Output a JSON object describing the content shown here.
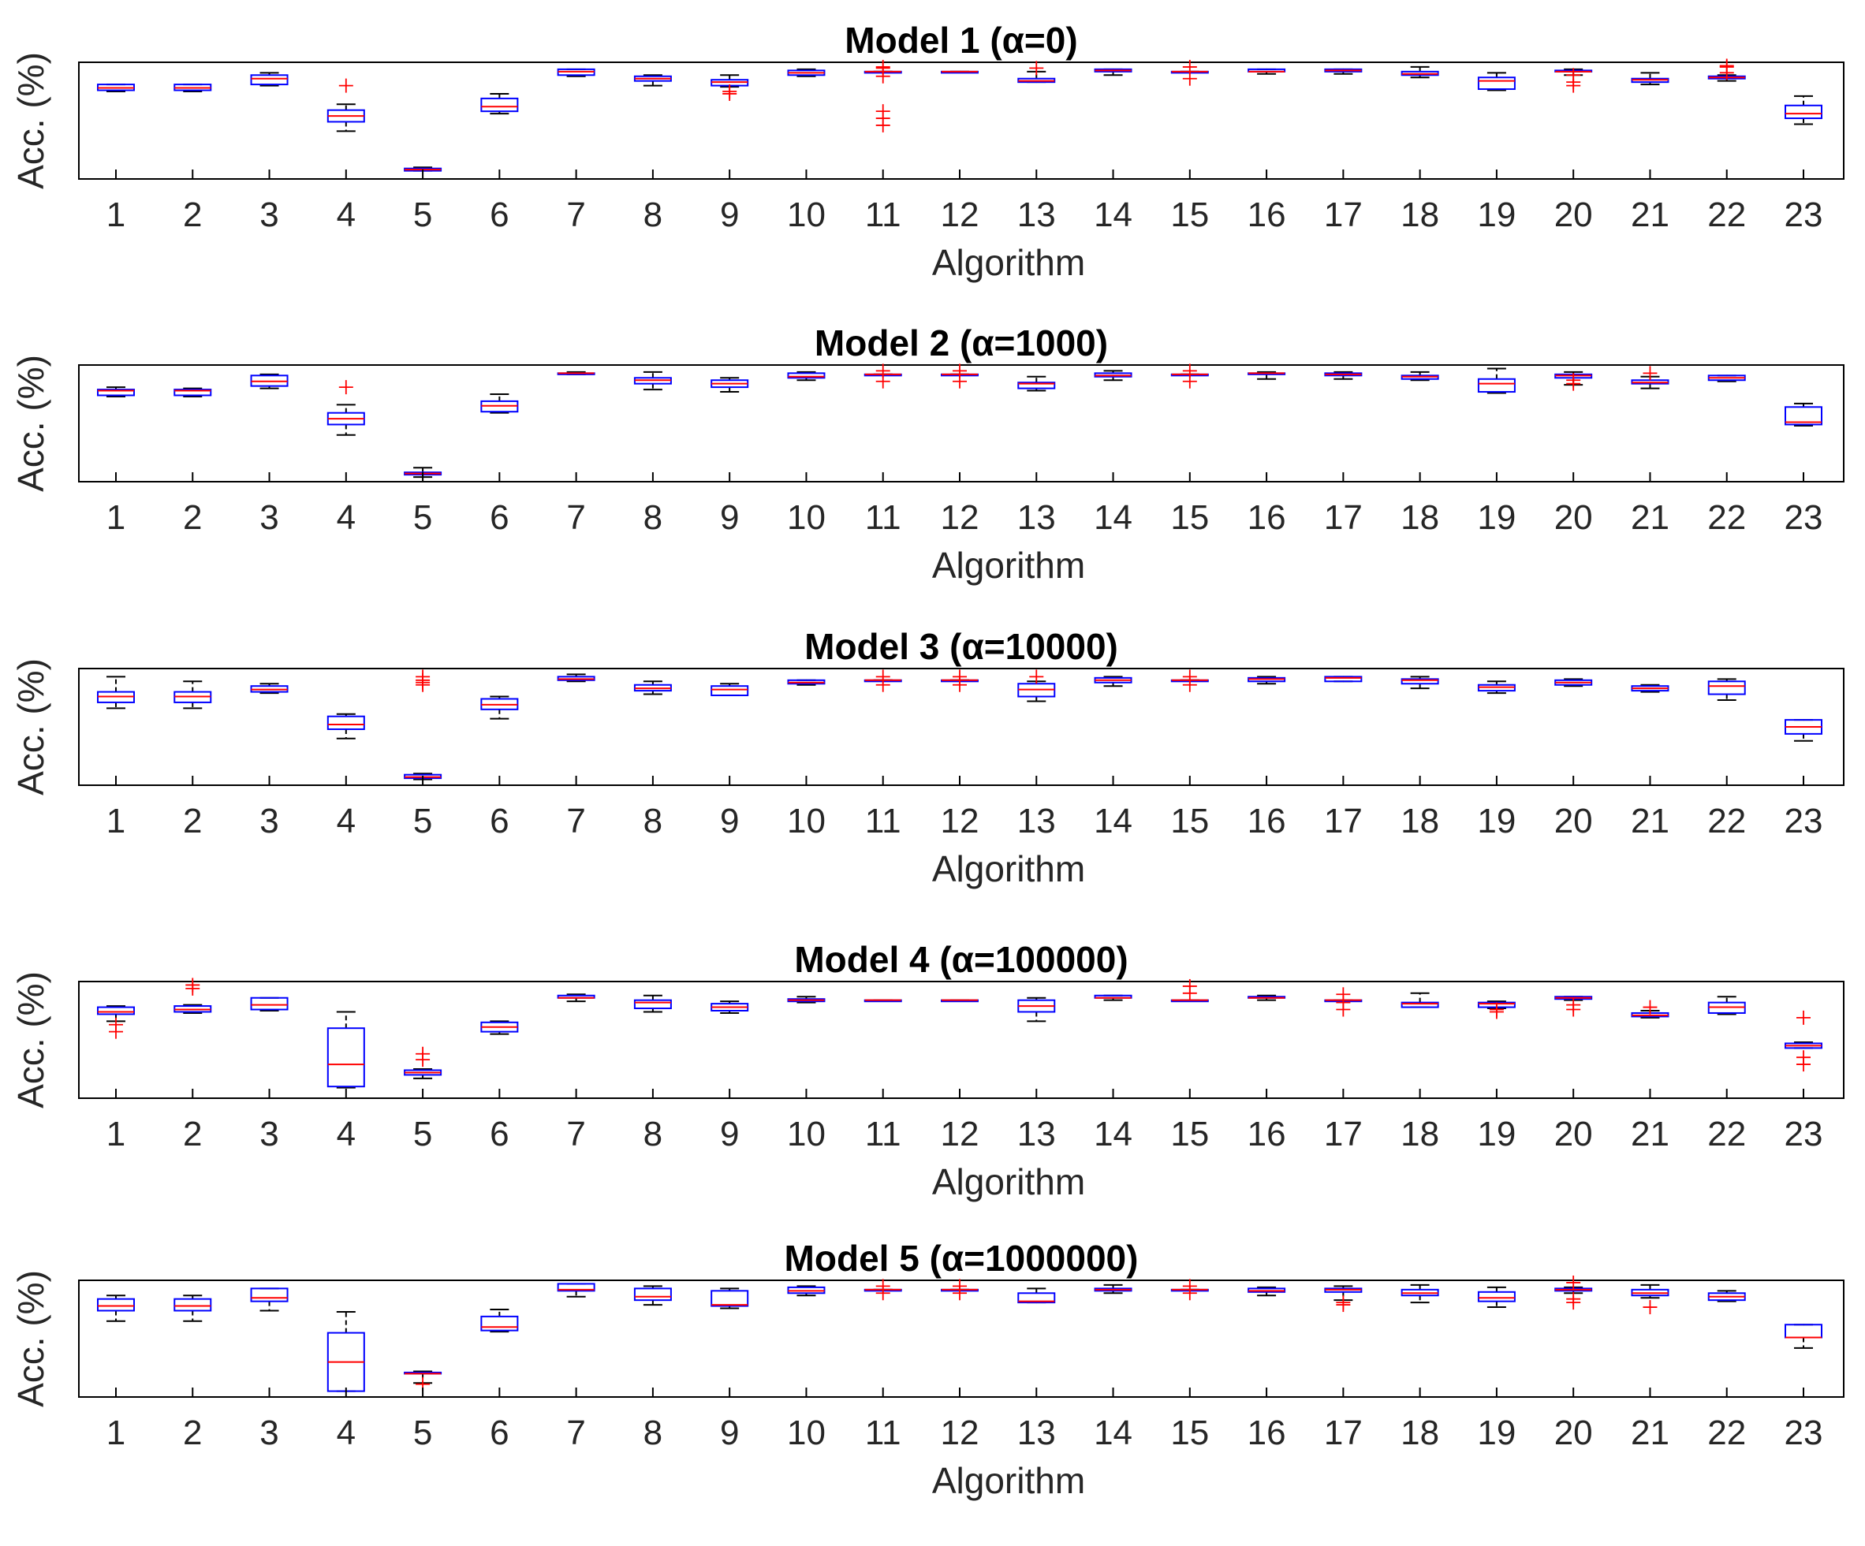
{
  "colors": {
    "box": "#0000ff",
    "median": "#ff0000",
    "whisker": "#000000",
    "outlier": "#ff0000",
    "axes": "#000000"
  },
  "chart_data": [
    {
      "type": "box",
      "title": "Model 1 (α=0)",
      "xlabel": "Algorithm",
      "ylabel": "Acc. (%)",
      "categories": [
        "1",
        "2",
        "3",
        "4",
        "5",
        "6",
        "7",
        "8",
        "9",
        "10",
        "11",
        "12",
        "13",
        "14",
        "15",
        "16",
        "17",
        "18",
        "19",
        "20",
        "21",
        "22",
        "23"
      ],
      "ylim": [
        0,
        100
      ],
      "yticks_shown": false,
      "boxes": [
        {
          "min": 75,
          "q1": 76,
          "median": 78,
          "q3": 81,
          "max": 81
        },
        {
          "min": 75,
          "q1": 76,
          "median": 78,
          "q3": 81,
          "max": 81
        },
        {
          "min": 80,
          "q1": 81,
          "median": 86,
          "q3": 89,
          "max": 91
        },
        {
          "min": 41,
          "q1": 49,
          "median": 54,
          "q3": 59,
          "max": 64,
          "outliers": [
            80
          ]
        },
        {
          "min": 7,
          "q1": 7,
          "median": 8,
          "q3": 9,
          "max": 10
        },
        {
          "min": 56,
          "q1": 58,
          "median": 62,
          "q3": 69,
          "max": 73
        },
        {
          "min": 88,
          "q1": 89,
          "median": 92,
          "q3": 94,
          "max": 94
        },
        {
          "min": 80,
          "q1": 84,
          "median": 86,
          "q3": 88,
          "max": 89
        },
        {
          "min": 79,
          "q1": 80,
          "median": 83,
          "q3": 85,
          "max": 89,
          "outliers": [
            73,
            75
          ]
        },
        {
          "min": 88,
          "q1": 89,
          "median": 91,
          "q3": 93,
          "max": 94
        },
        {
          "min": 92,
          "q1": 92,
          "median": 92,
          "q3": 92,
          "max": 92,
          "outliers": [
            46,
            52,
            58,
            88,
            95,
            96
          ]
        },
        {
          "min": 92,
          "q1": 92,
          "median": 92,
          "q3": 92,
          "max": 92
        },
        {
          "min": 83,
          "q1": 83,
          "median": 84,
          "q3": 86,
          "max": 92,
          "outliers": [
            95
          ]
        },
        {
          "min": 89,
          "q1": 92,
          "median": 93,
          "q3": 94,
          "max": 94
        },
        {
          "min": 92,
          "q1": 92,
          "median": 92,
          "q3": 92,
          "max": 92,
          "outliers": [
            86,
            96
          ]
        },
        {
          "min": 90,
          "q1": 92,
          "median": 92,
          "q3": 94,
          "max": 94
        },
        {
          "min": 90,
          "q1": 92,
          "median": 93,
          "q3": 94,
          "max": 94
        },
        {
          "min": 87,
          "q1": 89,
          "median": 90,
          "q3": 92,
          "max": 96
        },
        {
          "min": 76,
          "q1": 77,
          "median": 84,
          "q3": 87,
          "max": 91
        },
        {
          "min": 89,
          "q1": 92,
          "median": 92,
          "q3": 93,
          "max": 94,
          "outliers": [
            80,
            83,
            89
          ]
        },
        {
          "min": 81,
          "q1": 83,
          "median": 85,
          "q3": 86,
          "max": 91
        },
        {
          "min": 84,
          "q1": 86,
          "median": 87,
          "q3": 88,
          "max": 89,
          "outliers": [
            91,
            96,
            97
          ]
        },
        {
          "min": 47,
          "q1": 52,
          "median": 56,
          "q3": 63,
          "max": 71
        }
      ]
    },
    {
      "type": "box",
      "title": "Model 2 (α=1000)",
      "xlabel": "Algorithm",
      "ylabel": "Acc. (%)",
      "categories": [
        "1",
        "2",
        "3",
        "4",
        "5",
        "6",
        "7",
        "8",
        "9",
        "10",
        "11",
        "12",
        "13",
        "14",
        "15",
        "16",
        "17",
        "18",
        "19",
        "20",
        "21",
        "22",
        "23"
      ],
      "ylim": [
        0,
        100
      ],
      "yticks_shown": false,
      "boxes": [
        {
          "min": 73,
          "q1": 74,
          "median": 78,
          "q3": 79,
          "max": 81
        },
        {
          "min": 73,
          "q1": 74,
          "median": 78,
          "q3": 79,
          "max": 80
        },
        {
          "min": 80,
          "q1": 82,
          "median": 86,
          "q3": 91,
          "max": 92
        },
        {
          "min": 40,
          "q1": 49,
          "median": 54,
          "q3": 59,
          "max": 66,
          "outliers": [
            81
          ]
        },
        {
          "min": 4,
          "q1": 6,
          "median": 7,
          "q3": 8,
          "max": 12
        },
        {
          "min": 59,
          "q1": 60,
          "median": 65,
          "q3": 69,
          "max": 75
        },
        {
          "min": 92,
          "q1": 92,
          "median": 93,
          "q3": 93,
          "max": 94
        },
        {
          "min": 79,
          "q1": 84,
          "median": 87,
          "q3": 89,
          "max": 94
        },
        {
          "min": 77,
          "q1": 81,
          "median": 84,
          "q3": 87,
          "max": 89
        },
        {
          "min": 87,
          "q1": 89,
          "median": 90,
          "q3": 93,
          "max": 94
        },
        {
          "min": 92,
          "q1": 92,
          "median": 92,
          "q3": 92,
          "max": 92,
          "outliers": [
            86,
            95
          ]
        },
        {
          "min": 92,
          "q1": 92,
          "median": 92,
          "q3": 92,
          "max": 92,
          "outliers": [
            86,
            95
          ]
        },
        {
          "min": 78,
          "q1": 80,
          "median": 84,
          "q3": 85,
          "max": 90
        },
        {
          "min": 87,
          "q1": 90,
          "median": 91,
          "q3": 93,
          "max": 95
        },
        {
          "min": 92,
          "q1": 92,
          "median": 92,
          "q3": 92,
          "max": 92,
          "outliers": [
            86,
            95
          ]
        },
        {
          "min": 88,
          "q1": 92,
          "median": 93,
          "q3": 93,
          "max": 94
        },
        {
          "min": 88,
          "q1": 91,
          "median": 92,
          "q3": 93,
          "max": 94
        },
        {
          "min": 87,
          "q1": 88,
          "median": 90,
          "q3": 91,
          "max": 94
        },
        {
          "min": 76,
          "q1": 77,
          "median": 84,
          "q3": 88,
          "max": 97
        },
        {
          "min": 83,
          "q1": 89,
          "median": 91,
          "q3": 92,
          "max": 94,
          "outliers": [
            84,
            87
          ]
        },
        {
          "min": 80,
          "q1": 84,
          "median": 85,
          "q3": 87,
          "max": 90,
          "outliers": [
            93
          ]
        },
        {
          "min": 86,
          "q1": 87,
          "median": 89,
          "q3": 91,
          "max": 91
        },
        {
          "min": 48,
          "q1": 49,
          "median": 51,
          "q3": 64,
          "max": 67
        }
      ]
    },
    {
      "type": "box",
      "title": "Model 3 (α=10000)",
      "xlabel": "Algorithm",
      "ylabel": "Acc. (%)",
      "categories": [
        "1",
        "2",
        "3",
        "4",
        "5",
        "6",
        "7",
        "8",
        "9",
        "10",
        "11",
        "12",
        "13",
        "14",
        "15",
        "16",
        "17",
        "18",
        "19",
        "20",
        "21",
        "22",
        "23"
      ],
      "ylim": [
        0,
        100
      ],
      "yticks_shown": false,
      "boxes": [
        {
          "min": 66,
          "q1": 71,
          "median": 76,
          "q3": 80,
          "max": 93
        },
        {
          "min": 66,
          "q1": 71,
          "median": 76,
          "q3": 80,
          "max": 89
        },
        {
          "min": 79,
          "q1": 80,
          "median": 82,
          "q3": 85,
          "max": 87
        },
        {
          "min": 40,
          "q1": 48,
          "median": 52,
          "q3": 59,
          "max": 61
        },
        {
          "min": 5,
          "q1": 6,
          "median": 7,
          "q3": 9,
          "max": 10,
          "outliers": [
            86,
            88,
            90,
            93
          ]
        },
        {
          "min": 57,
          "q1": 65,
          "median": 69,
          "q3": 74,
          "max": 76
        },
        {
          "min": 89,
          "q1": 90,
          "median": 91,
          "q3": 93,
          "max": 95
        },
        {
          "min": 78,
          "q1": 81,
          "median": 83,
          "q3": 86,
          "max": 89
        },
        {
          "min": 77,
          "q1": 77,
          "median": 82,
          "q3": 85,
          "max": 87
        },
        {
          "min": 86,
          "q1": 87,
          "median": 88,
          "q3": 90,
          "max": 90
        },
        {
          "min": 90,
          "q1": 90,
          "median": 90,
          "q3": 90,
          "max": 90,
          "outliers": [
            86,
            93
          ]
        },
        {
          "min": 90,
          "q1": 90,
          "median": 90,
          "q3": 90,
          "max": 90,
          "outliers": [
            86,
            93
          ]
        },
        {
          "min": 72,
          "q1": 76,
          "median": 82,
          "q3": 87,
          "max": 89,
          "outliers": [
            93
          ]
        },
        {
          "min": 85,
          "q1": 88,
          "median": 90,
          "q3": 92,
          "max": 93
        },
        {
          "min": 90,
          "q1": 90,
          "median": 90,
          "q3": 90,
          "max": 90,
          "outliers": [
            86,
            93
          ]
        },
        {
          "min": 87,
          "q1": 89,
          "median": 91,
          "q3": 92,
          "max": 93
        },
        {
          "min": 89,
          "q1": 89,
          "median": 92,
          "q3": 93,
          "max": 93
        },
        {
          "min": 83,
          "q1": 87,
          "median": 90,
          "q3": 91,
          "max": 93
        },
        {
          "min": 79,
          "q1": 81,
          "median": 84,
          "q3": 86,
          "max": 89
        },
        {
          "min": 85,
          "q1": 86,
          "median": 88,
          "q3": 90,
          "max": 91
        },
        {
          "min": 80,
          "q1": 81,
          "median": 83,
          "q3": 85,
          "max": 86
        },
        {
          "min": 73,
          "q1": 78,
          "median": 85,
          "q3": 89,
          "max": 91
        },
        {
          "min": 38,
          "q1": 44,
          "median": 50,
          "q3": 56,
          "max": 56
        }
      ]
    },
    {
      "type": "box",
      "title": "Model 4 (α=100000)",
      "xlabel": "Algorithm",
      "ylabel": "Acc. (%)",
      "categories": [
        "1",
        "2",
        "3",
        "4",
        "5",
        "6",
        "7",
        "8",
        "9",
        "10",
        "11",
        "12",
        "13",
        "14",
        "15",
        "16",
        "17",
        "18",
        "19",
        "20",
        "21",
        "22",
        "23"
      ],
      "ylim": [
        0,
        100
      ],
      "yticks_shown": false,
      "boxes": [
        {
          "min": 66,
          "q1": 72,
          "median": 74,
          "q3": 78,
          "max": 79,
          "outliers": [
            57,
            63
          ]
        },
        {
          "min": 73,
          "q1": 74,
          "median": 76,
          "q3": 79,
          "max": 80,
          "outliers": [
            94,
            97
          ]
        },
        {
          "min": 75,
          "q1": 76,
          "median": 80,
          "q3": 86,
          "max": 86
        },
        {
          "min": 9,
          "q1": 10,
          "median": 29,
          "q3": 60,
          "max": 74
        },
        {
          "min": 17,
          "q1": 20,
          "median": 22,
          "q3": 24,
          "max": 25,
          "outliers": [
            33,
            38
          ]
        },
        {
          "min": 55,
          "q1": 57,
          "median": 61,
          "q3": 65,
          "max": 66
        },
        {
          "min": 83,
          "q1": 86,
          "median": 86,
          "q3": 88,
          "max": 89
        },
        {
          "min": 74,
          "q1": 77,
          "median": 82,
          "q3": 84,
          "max": 88
        },
        {
          "min": 73,
          "q1": 75,
          "median": 78,
          "q3": 81,
          "max": 83
        },
        {
          "min": 82,
          "q1": 83,
          "median": 84,
          "q3": 85,
          "max": 87
        },
        {
          "min": 84,
          "q1": 84,
          "median": 84,
          "q3": 84,
          "max": 84
        },
        {
          "min": 84,
          "q1": 84,
          "median": 84,
          "q3": 84,
          "max": 84
        },
        {
          "min": 66,
          "q1": 74,
          "median": 79,
          "q3": 84,
          "max": 86
        },
        {
          "min": 84,
          "q1": 86,
          "median": 86,
          "q3": 88,
          "max": 88
        },
        {
          "min": 84,
          "q1": 84,
          "median": 84,
          "q3": 84,
          "max": 84,
          "outliers": [
            90,
            96
          ]
        },
        {
          "min": 84,
          "q1": 86,
          "median": 86,
          "q3": 87,
          "max": 88
        },
        {
          "min": 84,
          "q1": 84,
          "median": 84,
          "q3": 84,
          "max": 84,
          "outliers": [
            76,
            82,
            89
          ]
        },
        {
          "min": 78,
          "q1": 78,
          "median": 81,
          "q3": 82,
          "max": 90
        },
        {
          "min": 77,
          "q1": 78,
          "median": 81,
          "q3": 82,
          "max": 83,
          "outliers": [
            74,
            76
          ]
        },
        {
          "min": 84,
          "q1": 85,
          "median": 86,
          "q3": 87,
          "max": 87,
          "outliers": [
            76,
            80
          ]
        },
        {
          "min": 69,
          "q1": 70,
          "median": 71,
          "q3": 73,
          "max": 75,
          "outliers": [
            78
          ]
        },
        {
          "min": 72,
          "q1": 73,
          "median": 78,
          "q3": 82,
          "max": 87
        },
        {
          "min": 43,
          "q1": 43,
          "median": 45,
          "q3": 47,
          "max": 48,
          "outliers": [
            29,
            35,
            69
          ]
        }
      ]
    },
    {
      "type": "box",
      "title": "Model 5 (α=1000000)",
      "xlabel": "Algorithm",
      "ylabel": "Acc. (%)",
      "categories": [
        "1",
        "2",
        "3",
        "4",
        "5",
        "6",
        "7",
        "8",
        "9",
        "10",
        "11",
        "12",
        "13",
        "14",
        "15",
        "16",
        "17",
        "18",
        "19",
        "20",
        "21",
        "22",
        "23"
      ],
      "ylim": [
        0,
        100
      ],
      "yticks_shown": false,
      "boxes": [
        {
          "min": 65,
          "q1": 74,
          "median": 78,
          "q3": 84,
          "max": 87
        },
        {
          "min": 65,
          "q1": 74,
          "median": 78,
          "q3": 84,
          "max": 87
        },
        {
          "min": 74,
          "q1": 82,
          "median": 85,
          "q3": 93,
          "max": 93
        },
        {
          "min": 5,
          "q1": 5,
          "median": 30,
          "q3": 55,
          "max": 73
        },
        {
          "min": 12,
          "q1": 20,
          "median": 20,
          "q3": 21,
          "max": 22,
          "outliers": [
            11
          ]
        },
        {
          "min": 56,
          "q1": 57,
          "median": 60,
          "q3": 69,
          "max": 75
        },
        {
          "min": 86,
          "q1": 91,
          "median": 92,
          "q3": 97,
          "max": 97
        },
        {
          "min": 79,
          "q1": 83,
          "median": 86,
          "q3": 93,
          "max": 95
        },
        {
          "min": 76,
          "q1": 78,
          "median": 79,
          "q3": 91,
          "max": 93
        },
        {
          "min": 87,
          "q1": 89,
          "median": 91,
          "q3": 94,
          "max": 95
        },
        {
          "min": 92,
          "q1": 92,
          "median": 92,
          "q3": 92,
          "max": 92,
          "outliers": [
            89,
            95
          ]
        },
        {
          "min": 92,
          "q1": 92,
          "median": 92,
          "q3": 92,
          "max": 92,
          "outliers": [
            89,
            95
          ]
        },
        {
          "min": 81,
          "q1": 81,
          "median": 82,
          "q3": 89,
          "max": 93
        },
        {
          "min": 89,
          "q1": 91,
          "median": 92,
          "q3": 93,
          "max": 96
        },
        {
          "min": 92,
          "q1": 92,
          "median": 92,
          "q3": 92,
          "max": 92,
          "outliers": [
            89,
            95
          ]
        },
        {
          "min": 87,
          "q1": 90,
          "median": 91,
          "q3": 93,
          "max": 94
        },
        {
          "min": 83,
          "q1": 90,
          "median": 92,
          "q3": 93,
          "max": 95,
          "outliers": [
            79,
            81
          ]
        },
        {
          "min": 81,
          "q1": 87,
          "median": 89,
          "q3": 92,
          "max": 96
        },
        {
          "min": 77,
          "q1": 82,
          "median": 85,
          "q3": 90,
          "max": 94
        },
        {
          "min": 89,
          "q1": 91,
          "median": 92,
          "q3": 93,
          "max": 94,
          "outliers": [
            81,
            84,
            98
          ]
        },
        {
          "min": 85,
          "q1": 87,
          "median": 89,
          "q3": 92,
          "max": 96,
          "outliers": [
            77
          ]
        },
        {
          "min": 82,
          "q1": 83,
          "median": 86,
          "q3": 89,
          "max": 91
        },
        {
          "min": 42,
          "q1": 51,
          "median": 51,
          "q3": 62,
          "max": 62
        }
      ]
    }
  ]
}
